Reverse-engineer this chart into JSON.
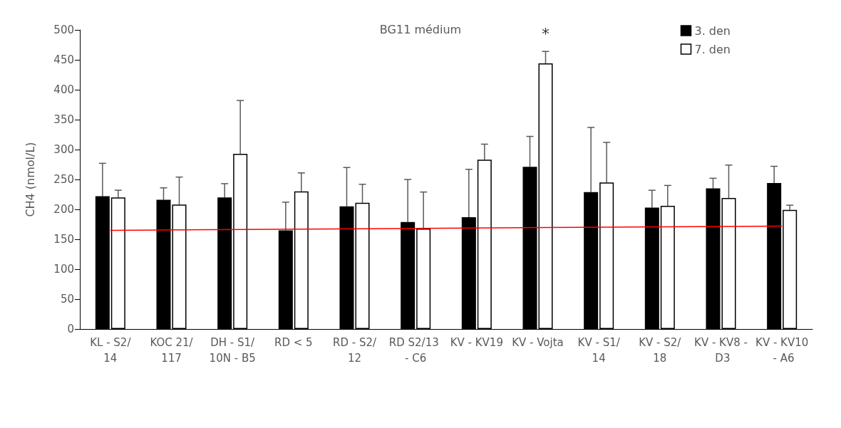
{
  "chart_data": {
    "type": "bar",
    "title": "BG11 médium",
    "ylabel": "CH4 (nmol/L)",
    "categories": [
      "KL - S2/14",
      "KOC 21/117",
      "DH - S1/10N - B5",
      "RD < 5",
      "RD - S2/12",
      "RD S2/13 - C6",
      "KV - KV19",
      "KV - Vojta",
      "KV - S1/14",
      "KV - S2/18",
      "KV - KV8 - D3",
      "KV - KV10 - A6"
    ],
    "series": [
      {
        "name": "3. den",
        "color": "#000000",
        "values": [
          222,
          216,
          220,
          165,
          205,
          179,
          187,
          271,
          229,
          203,
          235,
          244
        ],
        "errors": [
          [
            222,
            277
          ],
          [
            216,
            236
          ],
          [
            220,
            243
          ],
          [
            165,
            212
          ],
          [
            205,
            270
          ],
          [
            179,
            250
          ],
          [
            187,
            267
          ],
          [
            271,
            322
          ],
          [
            229,
            337
          ],
          [
            203,
            232
          ],
          [
            235,
            252
          ],
          [
            244,
            272
          ]
        ]
      },
      {
        "name": "7. den",
        "color": "#ffffff",
        "values": [
          220,
          208,
          293,
          230,
          211,
          168,
          283,
          444,
          245,
          206,
          219,
          199
        ],
        "errors": [
          [
            220,
            232
          ],
          [
            208,
            254
          ],
          [
            293,
            382
          ],
          [
            230,
            261
          ],
          [
            211,
            242
          ],
          [
            168,
            229
          ],
          [
            283,
            309
          ],
          [
            444,
            464
          ],
          [
            245,
            312
          ],
          [
            206,
            240
          ],
          [
            219,
            274
          ],
          [
            199,
            207
          ]
        ]
      },
      {
        "type": "line",
        "color": "#ff0000",
        "x": [
          "KL - S2/14",
          "KV - KV10 - A6"
        ],
        "values": [
          165,
          172
        ]
      }
    ],
    "annotations": [
      "*"
    ],
    "ylim": [
      0,
      500
    ],
    "yticks": [
      0,
      50,
      100,
      150,
      200,
      250,
      300,
      350,
      400,
      450,
      500
    ],
    "grid": false,
    "legend": "top right"
  }
}
